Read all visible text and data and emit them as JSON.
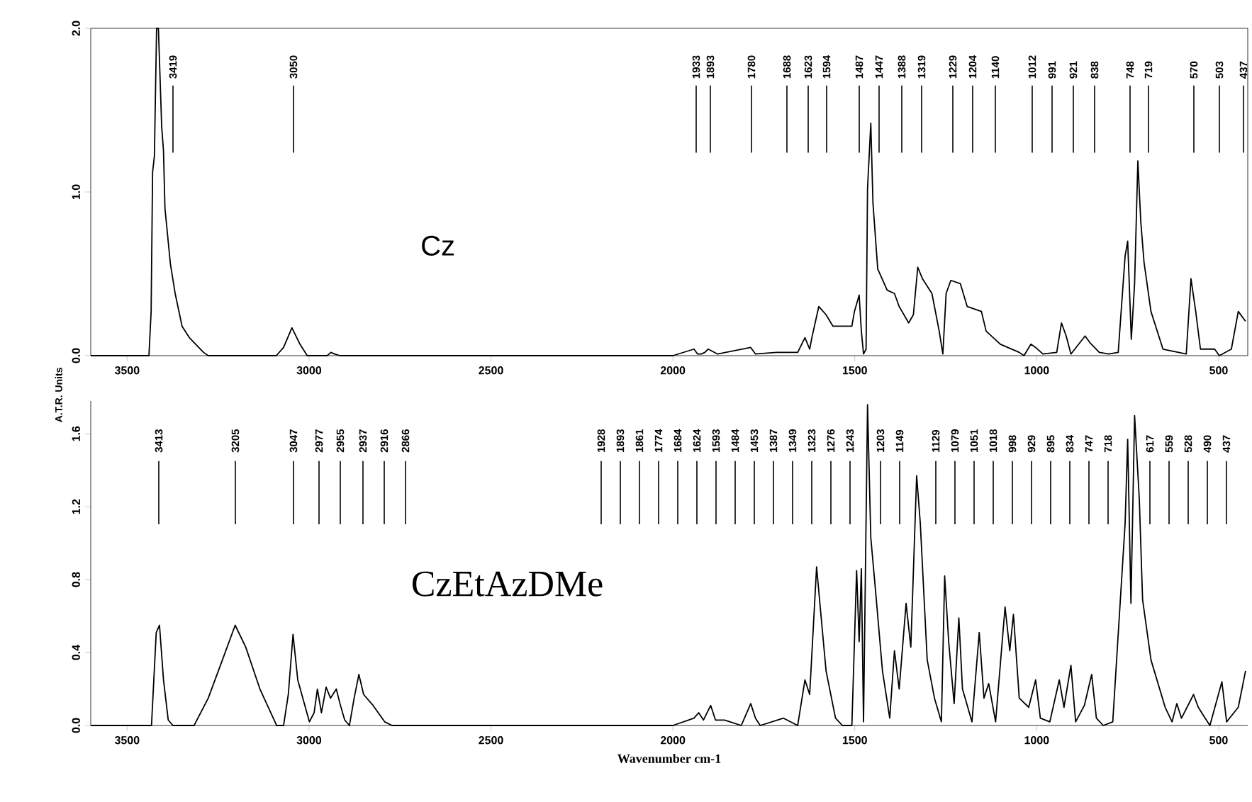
{
  "chart_data": [
    {
      "type": "line",
      "title": "Cz",
      "ylabel": "A.T.R. Units",
      "xlim": [
        3600,
        420
      ],
      "ylim": [
        0,
        2
      ],
      "xticks": [
        3500,
        3000,
        2500,
        2000,
        1500,
        1000,
        500
      ],
      "yticks": [
        {
          "value": 0,
          "label": "0.0"
        },
        {
          "value": 1,
          "label": "1.0"
        },
        {
          "value": 2,
          "label": "2.0"
        }
      ],
      "series": [
        {
          "color": "#000000",
          "x": [
            3600,
            3440,
            3434,
            3430,
            3425,
            3419,
            3414,
            3405,
            3400,
            3396,
            3381,
            3368,
            3349,
            3329,
            3290,
            3277,
            3090,
            3070,
            3047,
            3025,
            3005,
            2950,
            2940,
            2930,
            2915,
            2000,
            1942,
            1932,
            1922,
            1912,
            1903,
            1877,
            1786,
            1773,
            1715,
            1657,
            1637,
            1624,
            1618,
            1599,
            1579,
            1560,
            1508,
            1501,
            1488,
            1482,
            1476,
            1469,
            1465,
            1456,
            1450,
            1437,
            1411,
            1391,
            1378,
            1352,
            1339,
            1327,
            1314,
            1288,
            1268,
            1258,
            1249,
            1236,
            1210,
            1191,
            1152,
            1139,
            1100,
            1048,
            1035,
            1016,
            1003,
            983,
            945,
            932,
            919,
            906,
            867,
            854,
            828,
            802,
            776,
            757,
            750,
            740,
            731,
            722,
            714,
            705,
            686,
            653,
            589,
            576,
            563,
            550,
            511,
            498,
            465,
            446,
            426
          ],
          "values": [
            0,
            0,
            0.27,
            1.12,
            1.22,
            2.0,
            2.0,
            1.4,
            1.25,
            0.9,
            0.56,
            0.38,
            0.18,
            0.11,
            0.02,
            0,
            0,
            0.05,
            0.17,
            0.07,
            0,
            0,
            0.02,
            0.01,
            0,
            0,
            0.04,
            0.01,
            0.01,
            0.02,
            0.04,
            0.01,
            0.05,
            0.01,
            0.02,
            0.02,
            0.11,
            0.04,
            0.11,
            0.3,
            0.25,
            0.18,
            0.18,
            0.27,
            0.37,
            0.15,
            0.01,
            0.04,
            1.02,
            1.42,
            0.93,
            0.53,
            0.4,
            0.38,
            0.3,
            0.2,
            0.25,
            0.54,
            0.47,
            0.38,
            0.15,
            0.01,
            0.38,
            0.46,
            0.44,
            0.3,
            0.27,
            0.15,
            0.07,
            0.02,
            0,
            0.07,
            0.05,
            0.01,
            0.02,
            0.2,
            0.12,
            0.01,
            0.12,
            0.08,
            0.02,
            0.01,
            0.02,
            0.61,
            0.7,
            0.1,
            0.44,
            1.19,
            0.82,
            0.57,
            0.27,
            0.04,
            0.01,
            0.47,
            0.27,
            0.04,
            0.04,
            0,
            0.04,
            0.27,
            0.21
          ]
        }
      ],
      "annotations": [
        "3419",
        "3050",
        "1933",
        "1893",
        "1780",
        "1688",
        "1623",
        "1594",
        "1487",
        "1447",
        "1388",
        "1319",
        "1229",
        "1204",
        "1140",
        "1012",
        "991",
        "921",
        "838",
        "748",
        "719",
        "570",
        "503",
        "437"
      ]
    },
    {
      "type": "line",
      "title": "CzEtAzDMe",
      "xlabel": "Wavenumber cm-1",
      "xlim": [
        3600,
        420
      ],
      "ylim": [
        0,
        1.78
      ],
      "xticks": [
        3500,
        3000,
        2500,
        2000,
        1500,
        1000,
        500
      ],
      "yticks": [
        {
          "value": 0,
          "label": "0.0"
        },
        {
          "value": 0.4,
          "label": "0.4"
        },
        {
          "value": 0.8,
          "label": "0.8"
        },
        {
          "value": 1.2,
          "label": "1.2"
        },
        {
          "value": 1.6,
          "label": "1.6"
        }
      ],
      "series": [
        {
          "color": "#000000",
          "x": [
            3600,
            3433,
            3420,
            3411,
            3400,
            3387,
            3374,
            3316,
            3277,
            3238,
            3203,
            3174,
            3135,
            3089,
            3070,
            3057,
            3044,
            3031,
            2999,
            2986,
            2977,
            2966,
            2953,
            2941,
            2925,
            2915,
            2902,
            2889,
            2876,
            2863,
            2850,
            2824,
            2792,
            2772,
            2000,
            1942,
            1929,
            1916,
            1896,
            1883,
            1858,
            1812,
            1786,
            1773,
            1760,
            1696,
            1657,
            1637,
            1624,
            1605,
            1595,
            1579,
            1553,
            1534,
            1508,
            1495,
            1488,
            1482,
            1476,
            1465,
            1456,
            1443,
            1424,
            1404,
            1391,
            1378,
            1359,
            1346,
            1330,
            1320,
            1301,
            1281,
            1262,
            1253,
            1242,
            1227,
            1214,
            1204,
            1178,
            1158,
            1145,
            1132,
            1113,
            1087,
            1074,
            1064,
            1048,
            1022,
            1003,
            990,
            964,
            938,
            925,
            906,
            893,
            869,
            849,
            836,
            817,
            791,
            757,
            750,
            741,
            731,
            718,
            709,
            686,
            647,
            628,
            615,
            602,
            569,
            556,
            537,
            524,
            491,
            478,
            446,
            426
          ],
          "values": [
            0,
            0,
            0.51,
            0.55,
            0.25,
            0.03,
            0,
            0,
            0.15,
            0.36,
            0.55,
            0.43,
            0.2,
            0,
            0,
            0.17,
            0.5,
            0.25,
            0.02,
            0.07,
            0.2,
            0.07,
            0.21,
            0.15,
            0.2,
            0.12,
            0.03,
            0,
            0.15,
            0.28,
            0.17,
            0.11,
            0.02,
            0,
            0,
            0.04,
            0.07,
            0.03,
            0.11,
            0.03,
            0.03,
            0,
            0.12,
            0.04,
            0,
            0.04,
            0,
            0.25,
            0.17,
            0.87,
            0.65,
            0.3,
            0.04,
            0,
            0,
            0.85,
            0.46,
            0.86,
            0.02,
            1.76,
            1.03,
            0.74,
            0.3,
            0.04,
            0.41,
            0.2,
            0.67,
            0.43,
            1.37,
            1.11,
            0.36,
            0.15,
            0.02,
            0.82,
            0.46,
            0.12,
            0.59,
            0.2,
            0.02,
            0.51,
            0.15,
            0.23,
            0.02,
            0.65,
            0.41,
            0.61,
            0.15,
            0.1,
            0.25,
            0.04,
            0.02,
            0.25,
            0.1,
            0.33,
            0.02,
            0.11,
            0.28,
            0.04,
            0,
            0.02,
            1.11,
            1.57,
            0.67,
            1.7,
            1.24,
            0.69,
            0.36,
            0.1,
            0.02,
            0.12,
            0.04,
            0.17,
            0.1,
            0.04,
            0,
            0.24,
            0.02,
            0.1,
            0.3
          ]
        }
      ],
      "annotations": [
        "3413",
        "3205",
        "3047",
        "2977",
        "2955",
        "2937",
        "2916",
        "2866",
        "1928",
        "1893",
        "1861",
        "1774",
        "1684",
        "1624",
        "1593",
        "1484",
        "1453",
        "1387",
        "1349",
        "1323",
        "1276",
        "1243",
        "1203",
        "1149",
        "1129",
        "1079",
        "1051",
        "1018",
        "998",
        "929",
        "895",
        "834",
        "747",
        "718",
        "617",
        "559",
        "528",
        "490",
        "437"
      ]
    }
  ]
}
